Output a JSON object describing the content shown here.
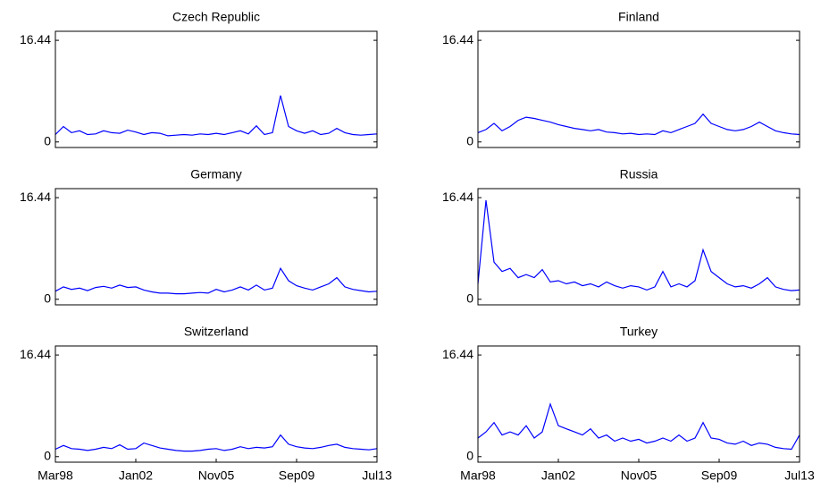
{
  "chart_data": [
    {
      "type": "line",
      "title": "Czech Republic",
      "color": "#0000ff",
      "ylim": [
        -0.9,
        17.9
      ],
      "yticks": [
        0,
        16.44
      ],
      "categories": [
        null,
        null,
        null,
        null,
        null,
        null,
        null,
        null,
        null,
        null,
        null,
        null,
        null,
        null,
        null,
        null,
        null,
        null,
        null,
        null,
        null,
        null,
        null,
        null,
        null,
        null,
        null,
        null,
        null,
        null,
        null,
        null,
        null,
        null,
        null,
        null,
        null,
        null,
        null,
        null,
        null
      ],
      "values": [
        1.2,
        2.5,
        1.5,
        1.8,
        1.2,
        1.3,
        1.8,
        1.5,
        1.4,
        1.9,
        1.6,
        1.2,
        1.5,
        1.4,
        1.0,
        1.1,
        1.2,
        1.1,
        1.3,
        1.2,
        1.4,
        1.2,
        1.5,
        1.8,
        1.3,
        2.6,
        1.2,
        1.5,
        7.5,
        2.5,
        1.8,
        1.4,
        1.8,
        1.2,
        1.4,
        2.2,
        1.5,
        1.2,
        1.1,
        1.2,
        1.3
      ]
    },
    {
      "type": "line",
      "title": "Finland",
      "color": "#0000ff",
      "ylim": [
        -0.9,
        17.9
      ],
      "yticks": [
        0,
        16.44
      ],
      "categories": [
        null,
        null,
        null,
        null,
        null,
        null,
        null,
        null,
        null,
        null,
        null,
        null,
        null,
        null,
        null,
        null,
        null,
        null,
        null,
        null,
        null,
        null,
        null,
        null,
        null,
        null,
        null,
        null,
        null,
        null,
        null,
        null,
        null,
        null,
        null,
        null,
        null,
        null,
        null,
        null,
        null
      ],
      "values": [
        1.5,
        2.0,
        3.0,
        1.8,
        2.5,
        3.5,
        4.0,
        3.8,
        3.5,
        3.2,
        2.8,
        2.5,
        2.2,
        2.0,
        1.8,
        2.0,
        1.6,
        1.5,
        1.3,
        1.4,
        1.2,
        1.3,
        1.2,
        1.8,
        1.5,
        2.0,
        2.5,
        3.0,
        4.5,
        3.0,
        2.5,
        2.0,
        1.8,
        2.0,
        2.5,
        3.2,
        2.5,
        1.8,
        1.5,
        1.3,
        1.2
      ]
    },
    {
      "type": "line",
      "title": "Germany",
      "color": "#0000ff",
      "ylim": [
        -0.9,
        17.9
      ],
      "yticks": [
        0,
        16.44
      ],
      "categories": [
        null,
        null,
        null,
        null,
        null,
        null,
        null,
        null,
        null,
        null,
        null,
        null,
        null,
        null,
        null,
        null,
        null,
        null,
        null,
        null,
        null,
        null,
        null,
        null,
        null,
        null,
        null,
        null,
        null,
        null,
        null,
        null,
        null,
        null,
        null,
        null,
        null,
        null,
        null,
        null,
        null
      ],
      "values": [
        1.3,
        2.0,
        1.6,
        1.8,
        1.4,
        1.9,
        2.1,
        1.8,
        2.3,
        1.9,
        2.0,
        1.5,
        1.2,
        1.0,
        1.0,
        0.9,
        0.9,
        1.0,
        1.1,
        1.0,
        1.6,
        1.2,
        1.5,
        2.0,
        1.5,
        2.3,
        1.5,
        1.8,
        5.0,
        3.0,
        2.2,
        1.8,
        1.5,
        2.0,
        2.5,
        3.5,
        2.0,
        1.6,
        1.4,
        1.2,
        1.3
      ]
    },
    {
      "type": "line",
      "title": "Russia",
      "color": "#0000ff",
      "ylim": [
        -0.9,
        17.9
      ],
      "yticks": [
        0,
        16.44
      ],
      "categories": [
        null,
        null,
        null,
        null,
        null,
        null,
        null,
        null,
        null,
        null,
        null,
        null,
        null,
        null,
        null,
        null,
        null,
        null,
        null,
        null,
        null,
        null,
        null,
        null,
        null,
        null,
        null,
        null,
        null,
        null,
        null,
        null,
        null,
        null,
        null,
        null,
        null,
        null,
        null,
        null,
        null
      ],
      "values": [
        2.5,
        16.0,
        6.0,
        4.5,
        5.0,
        3.5,
        4.0,
        3.5,
        4.8,
        2.8,
        3.0,
        2.5,
        2.8,
        2.2,
        2.5,
        2.0,
        2.8,
        2.2,
        1.8,
        2.2,
        2.0,
        1.5,
        2.0,
        4.5,
        2.0,
        2.5,
        2.0,
        3.0,
        8.0,
        4.5,
        3.5,
        2.5,
        2.0,
        2.2,
        1.8,
        2.5,
        3.5,
        2.0,
        1.6,
        1.4,
        1.5
      ]
    },
    {
      "type": "line",
      "title": "Switzerland",
      "color": "#0000ff",
      "ylim": [
        -0.9,
        17.9
      ],
      "yticks": [
        0,
        16.44
      ],
      "categories": [
        "Mar98",
        null,
        null,
        null,
        null,
        null,
        null,
        null,
        null,
        null,
        "Jan02",
        null,
        null,
        null,
        null,
        null,
        null,
        null,
        null,
        null,
        "Nov05",
        null,
        null,
        null,
        null,
        null,
        null,
        null,
        null,
        null,
        "Sep09",
        null,
        null,
        null,
        null,
        null,
        null,
        null,
        null,
        null,
        "Jul13"
      ],
      "values": [
        1.2,
        1.8,
        1.3,
        1.2,
        1.0,
        1.2,
        1.5,
        1.3,
        1.9,
        1.2,
        1.3,
        2.2,
        1.8,
        1.4,
        1.2,
        1.0,
        0.9,
        0.9,
        1.0,
        1.2,
        1.3,
        1.0,
        1.2,
        1.6,
        1.3,
        1.5,
        1.4,
        1.6,
        3.5,
        2.0,
        1.6,
        1.4,
        1.3,
        1.5,
        1.8,
        2.0,
        1.5,
        1.3,
        1.2,
        1.1,
        1.3
      ]
    },
    {
      "type": "line",
      "title": "Turkey",
      "color": "#0000ff",
      "ylim": [
        -0.9,
        17.9
      ],
      "yticks": [
        0,
        16.44
      ],
      "categories": [
        "Mar98",
        null,
        null,
        null,
        null,
        null,
        null,
        null,
        null,
        null,
        "Jan02",
        null,
        null,
        null,
        null,
        null,
        null,
        null,
        null,
        null,
        "Nov05",
        null,
        null,
        null,
        null,
        null,
        null,
        null,
        null,
        null,
        "Sep09",
        null,
        null,
        null,
        null,
        null,
        null,
        null,
        null,
        null,
        "Jul13"
      ],
      "values": [
        3.0,
        4.0,
        5.5,
        3.5,
        4.0,
        3.5,
        5.0,
        3.0,
        4.0,
        8.5,
        5.0,
        4.5,
        4.0,
        3.5,
        4.5,
        3.0,
        3.5,
        2.5,
        3.0,
        2.5,
        2.8,
        2.2,
        2.5,
        3.0,
        2.5,
        3.5,
        2.5,
        3.0,
        5.5,
        3.0,
        2.8,
        2.2,
        2.0,
        2.5,
        1.8,
        2.2,
        2.0,
        1.5,
        1.3,
        1.2,
        3.5
      ]
    }
  ]
}
